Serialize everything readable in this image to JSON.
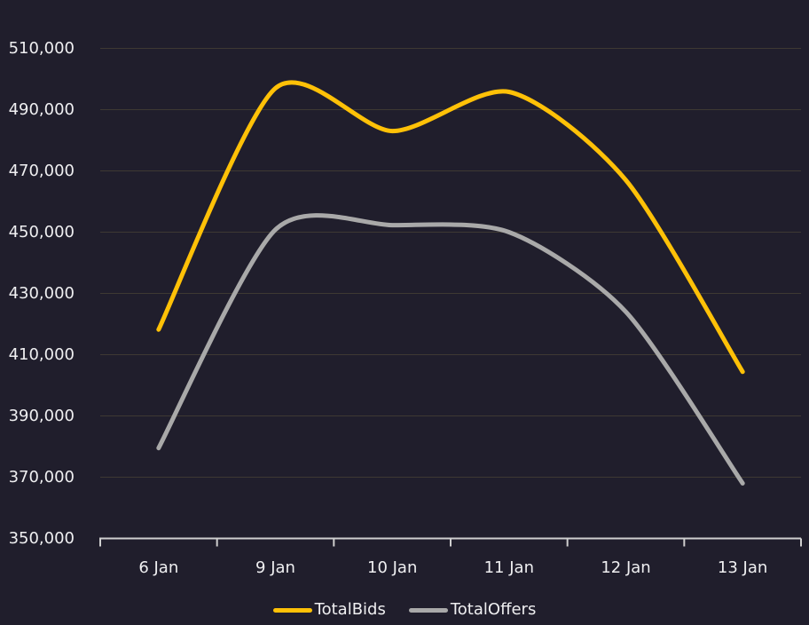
{
  "colors": {
    "background": "#201E2C",
    "text": "#EFEFF1",
    "gridline": "#3E3933",
    "axis": "#CFCFCF"
  },
  "chart_data": {
    "type": "line",
    "title": "",
    "categories": [
      "6 Jan",
      "9 Jan",
      "10 Jan",
      "11 Jan",
      "12 Jan",
      "13 Jan"
    ],
    "series": [
      {
        "name": "TotalBids",
        "color": "#FFC107",
        "values": [
          418200,
          497000,
          483000,
          495800,
          467000,
          404400
        ]
      },
      {
        "name": "TotalOffers",
        "color": "#A9A9A9",
        "values": [
          379500,
          450800,
          452300,
          450000,
          424000,
          368000
        ]
      }
    ],
    "ylim": [
      350000,
      510000
    ],
    "ytick_step": 20000,
    "ytick_labels_top_to_bottom": [
      "510,000",
      "490,000",
      "470,000",
      "450,000",
      "430,000",
      "410,000",
      "390,000",
      "370,000",
      "350,000"
    ],
    "grid": true,
    "curve": "smooth",
    "legend_position": "bottom"
  }
}
